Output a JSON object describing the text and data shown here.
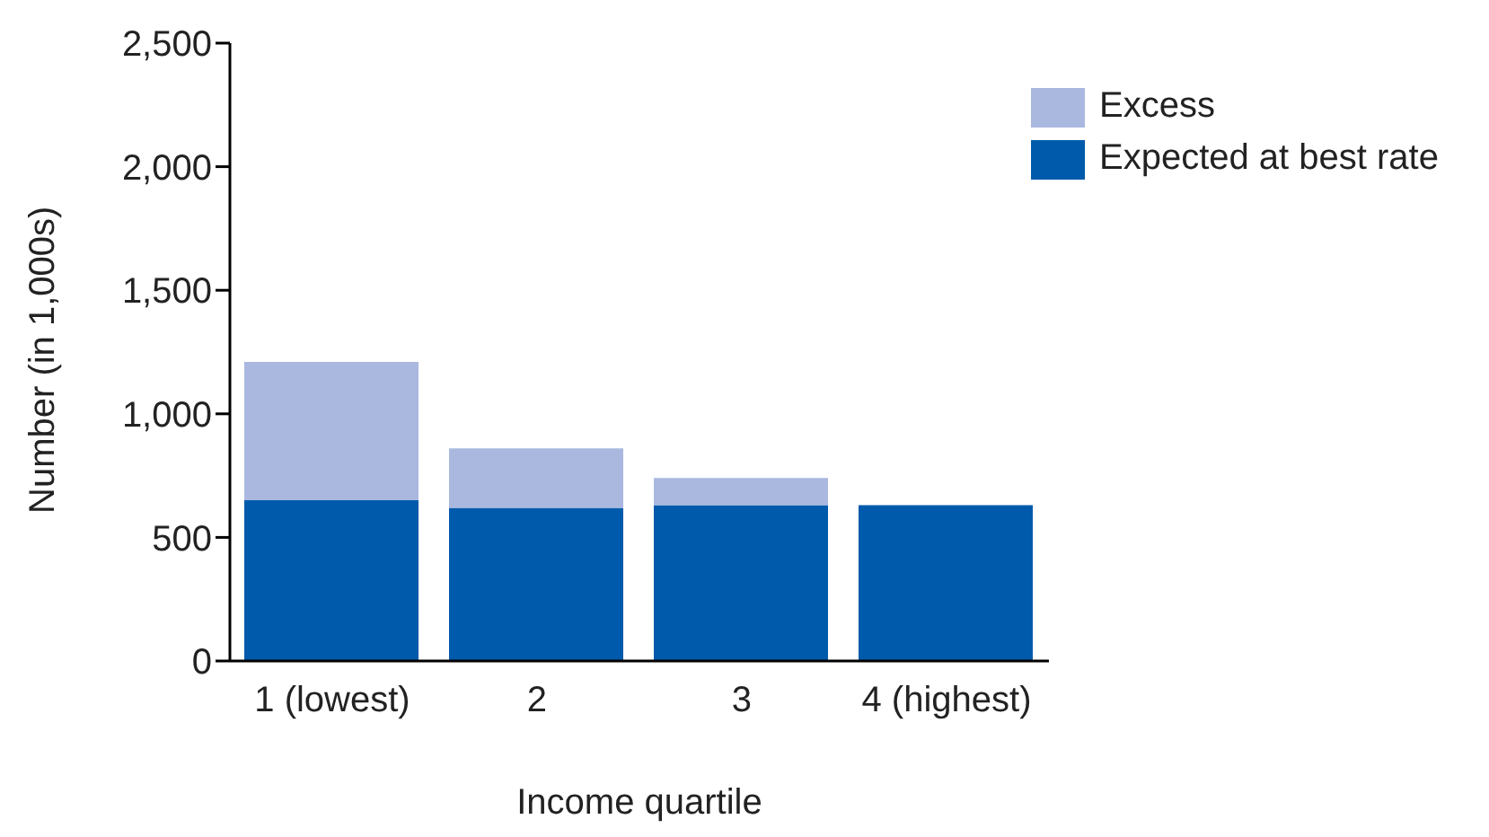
{
  "chart_data": {
    "type": "bar",
    "stacked": true,
    "xlabel": "Income quartile",
    "ylabel": "Number (in 1,000s)",
    "categories": [
      "1 (lowest)",
      "2",
      "3",
      "4 (highest)"
    ],
    "series": [
      {
        "name": "Expected at best rate",
        "color": "#005aab",
        "values": [
          650,
          620,
          630,
          630
        ]
      },
      {
        "name": "Excess",
        "color": "#aab8e0",
        "values": [
          560,
          240,
          110,
          0
        ]
      }
    ],
    "ylim": [
      0,
      2500
    ],
    "yticks": [
      {
        "value": 0,
        "label": "0"
      },
      {
        "value": 500,
        "label": "500"
      },
      {
        "value": 1000,
        "label": "1,000"
      },
      {
        "value": 1500,
        "label": "1,500"
      },
      {
        "value": 2000,
        "label": "2,000"
      },
      {
        "value": 2500,
        "label": "2,500"
      }
    ],
    "grid": false,
    "legend": "top right"
  }
}
